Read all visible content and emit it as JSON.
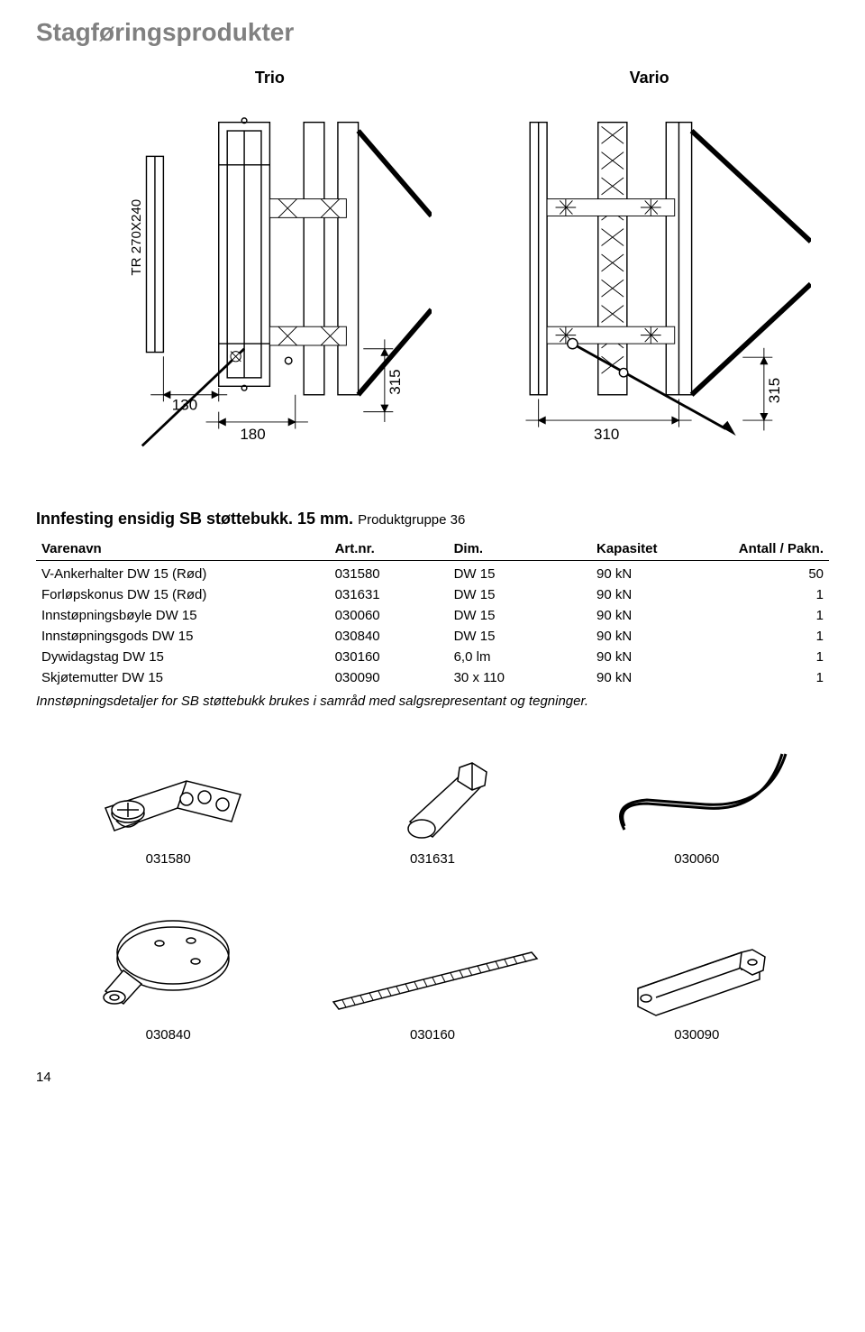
{
  "title": "Stagføringsprodukter",
  "diagrams": {
    "left_label": "Trio",
    "right_label": "Vario",
    "left": {
      "side_text": "TR 270X240",
      "dim_bottom_left": "130",
      "dim_bottom_mid": "180",
      "dim_bottom_right": "315"
    },
    "right": {
      "dim_bottom_mid": "310",
      "dim_bottom_right": "315"
    }
  },
  "section": {
    "heading_main": "Innfesting ensidig SB støttebukk. 15 mm.",
    "heading_sub": "Produktgruppe 36"
  },
  "table": {
    "headers": {
      "name": "Varenavn",
      "art": "Art.nr.",
      "dim": "Dim.",
      "kap": "Kapasitet",
      "ant": "Antall / Pakn."
    },
    "rows": [
      {
        "name": "V-Ankerhalter DW 15 (Rød)",
        "art": "031580",
        "dim": "DW 15",
        "kap": "90 kN",
        "ant": "50"
      },
      {
        "name": "Forløpskonus DW 15 (Rød)",
        "art": "031631",
        "dim": "DW 15",
        "kap": "90 kN",
        "ant": "1"
      },
      {
        "name": "Innstøpningsbøyle DW 15",
        "art": "030060",
        "dim": "DW 15",
        "kap": "90 kN",
        "ant": "1"
      },
      {
        "name": "Innstøpningsgods DW 15",
        "art": "030840",
        "dim": "DW 15",
        "kap": "90 kN",
        "ant": "1"
      },
      {
        "name": "Dywidagstag DW 15",
        "art": "030160",
        "dim": "6,0 lm",
        "kap": "90 kN",
        "ant": "1"
      },
      {
        "name": "Skjøtemutter DW 15",
        "art": "030090",
        "dim": "30 x 110",
        "kap": "90 kN",
        "ant": "1"
      }
    ],
    "note": "Innstøpningsdetaljer for SB støttebukk brukes i samråd med salgsrepresentant og tegninger."
  },
  "parts": {
    "p1": "031580",
    "p2": "031631",
    "p3": "030060",
    "p4": "030840",
    "p5": "030160",
    "p6": "030090"
  },
  "page_number": "14"
}
